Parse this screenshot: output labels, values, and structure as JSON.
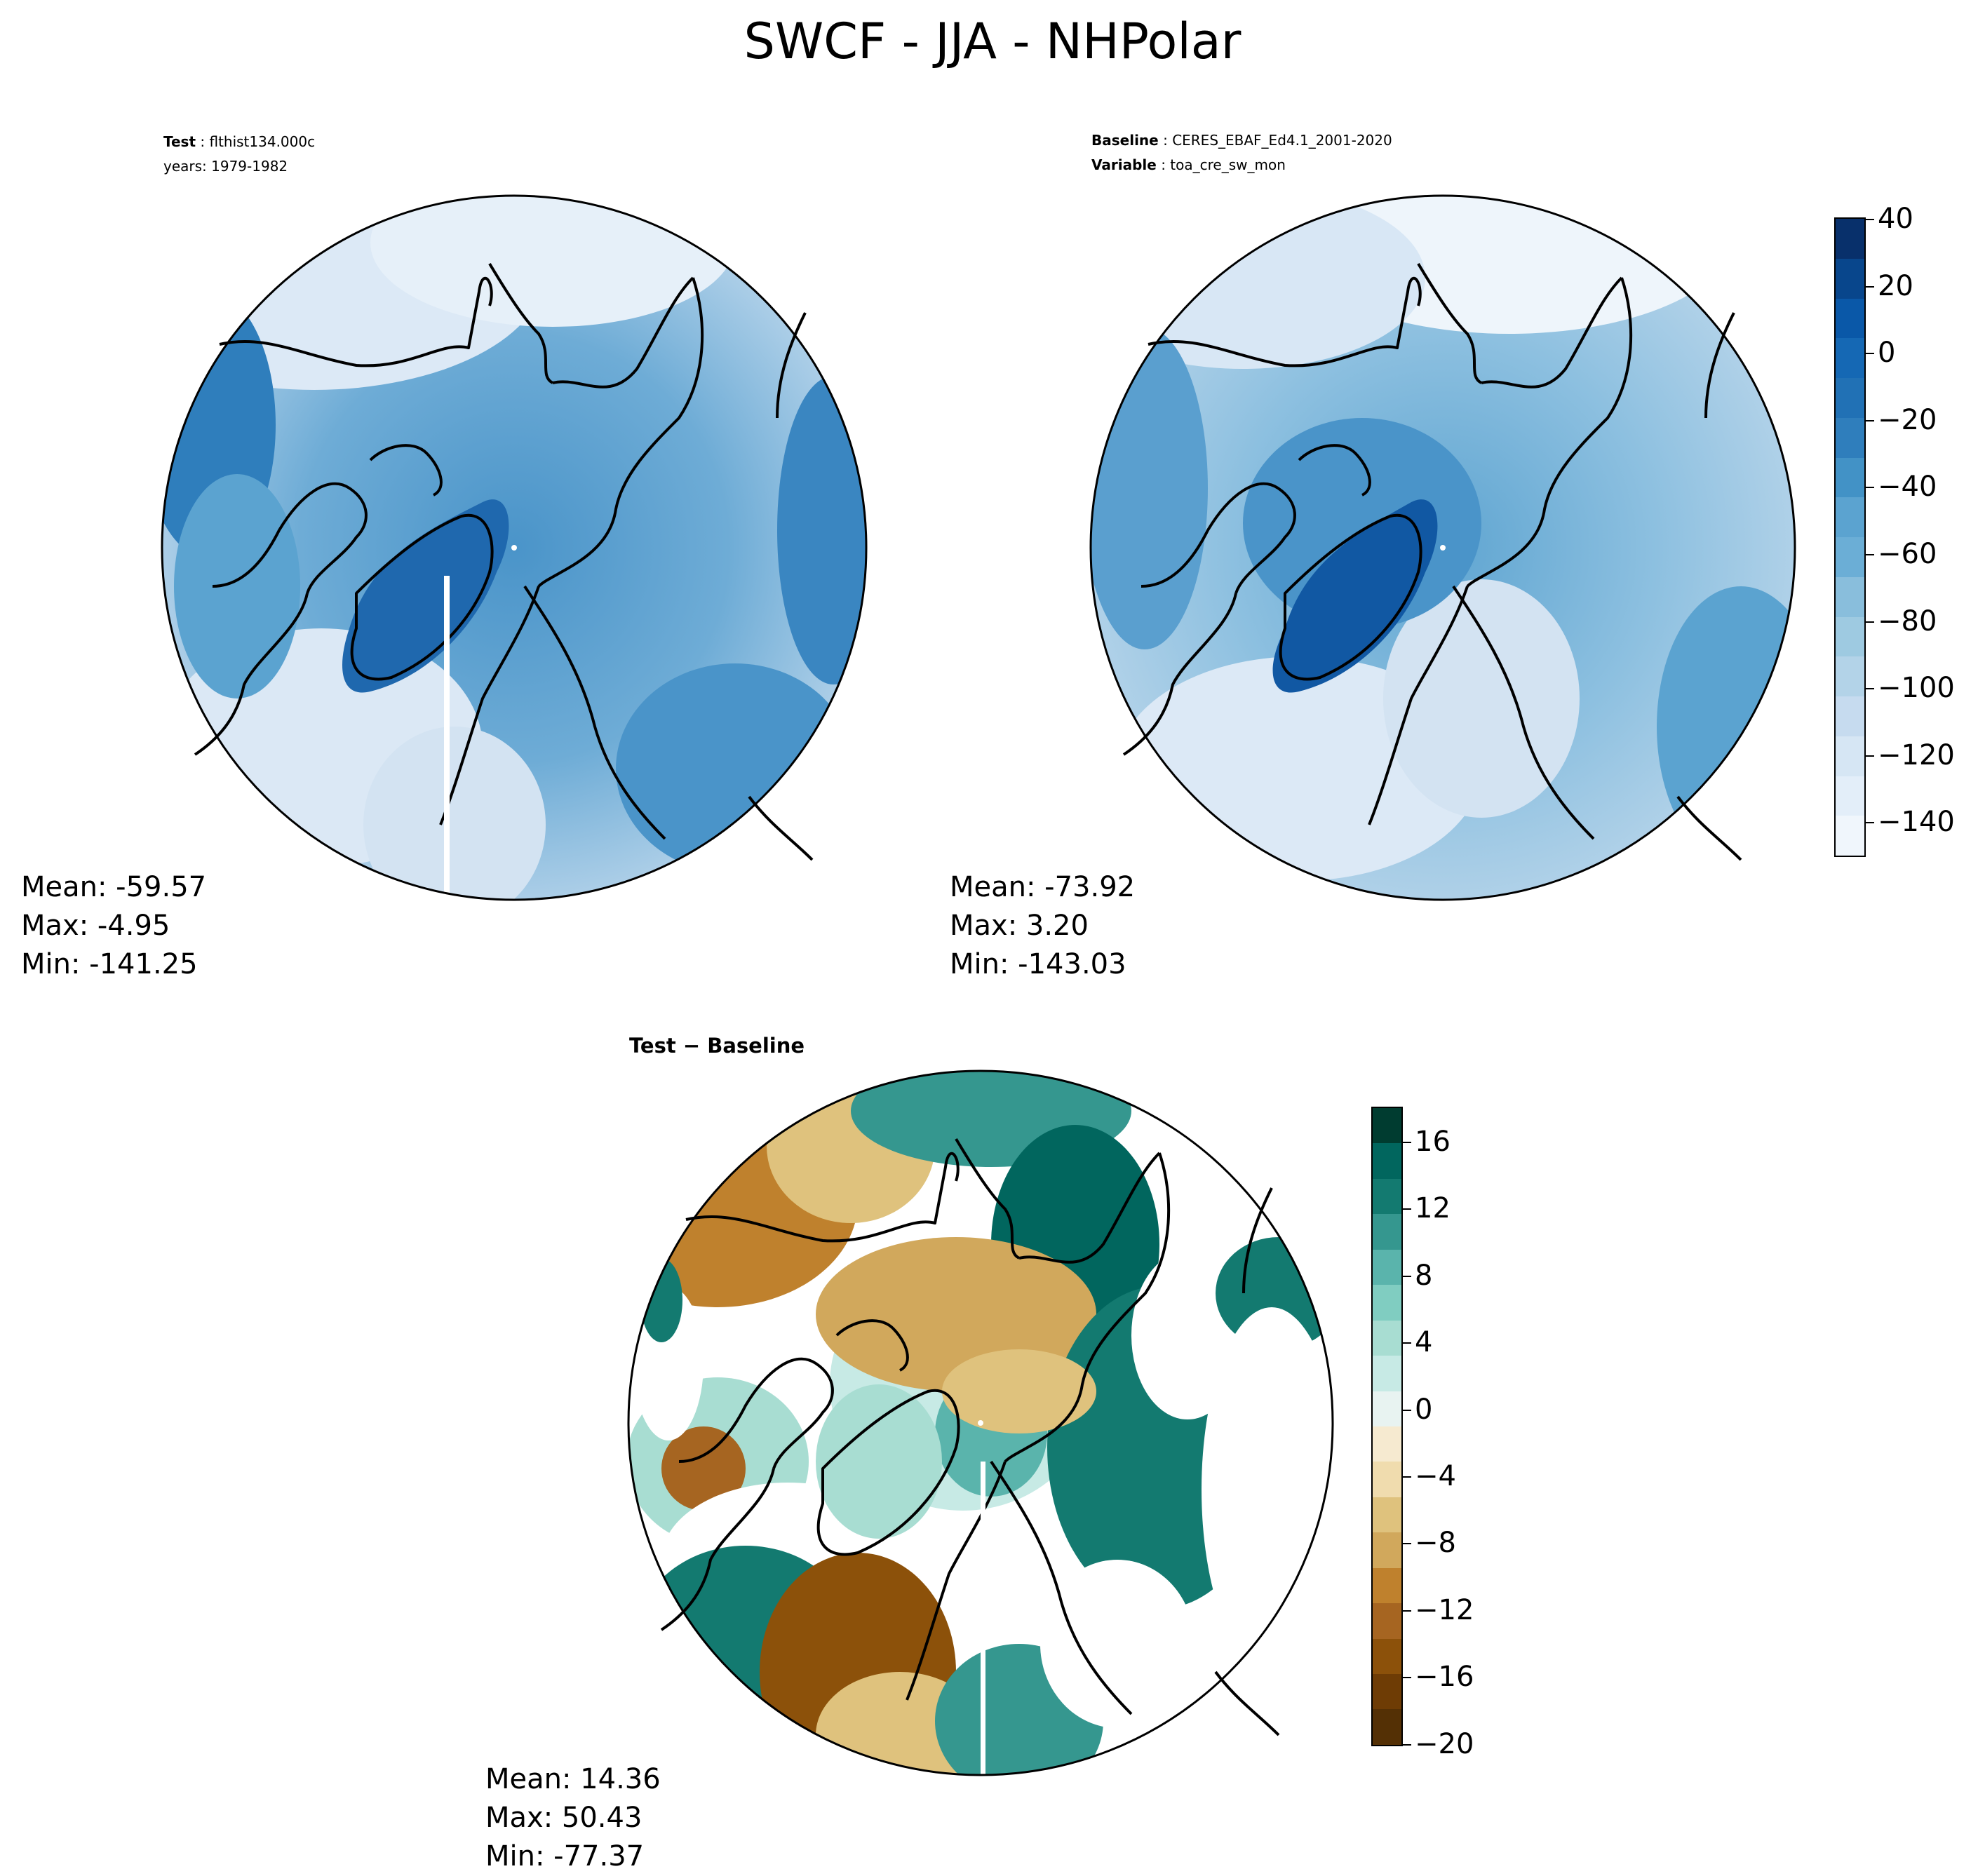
{
  "title": "SWCF - JJA - NHPolar",
  "test_panel": {
    "label_key": "Test",
    "label_value": "flthist134.000c",
    "years": "years: 1979-1982",
    "stats": {
      "mean": "Mean: -59.57",
      "max": "Max: -4.95",
      "min": "Min: -141.25"
    }
  },
  "baseline_panel": {
    "label_key": "Baseline",
    "label_value": "CERES_EBAF_Ed4.1_2001-2020",
    "variable_key": "Variable",
    "variable_value": "toa_cre_sw_mon",
    "stats": {
      "mean": "Mean: -73.92",
      "max": "Max:  3.20",
      "min": "Min: -143.03"
    }
  },
  "diff_panel": {
    "label": "Test − Baseline",
    "stats": {
      "mean": "Mean: 14.36",
      "max": "Max: 50.43",
      "min": "Min: -77.37"
    }
  },
  "colorbar_main": {
    "ticks": [
      "40",
      "20",
      "0",
      "−20",
      "−40",
      "−60",
      "−80",
      "−100",
      "−120",
      "−140"
    ],
    "colors": [
      "#08306b",
      "#08468c",
      "#0a58a8",
      "#1568b4",
      "#2171b5",
      "#2f7ebc",
      "#4292c6",
      "#5ba3d0",
      "#6baed6",
      "#89bedc",
      "#9ecae1",
      "#b3d3e8",
      "#c6dbef",
      "#d6e6f4",
      "#e3eef9",
      "#f0f6fc"
    ]
  },
  "colorbar_diff": {
    "ticks": [
      "16",
      "12",
      "8",
      "4",
      "0",
      "−4",
      "−8",
      "−12",
      "−16",
      "−20"
    ],
    "colors": [
      "#003c30",
      "#01665e",
      "#137a70",
      "#35978f",
      "#5ab4ac",
      "#80cdc1",
      "#a8ddd2",
      "#c7eae5",
      "#e8f3f1",
      "#f6ead0",
      "#f0dcae",
      "#dfc27d",
      "#d1a85c",
      "#bf812d",
      "#a66521",
      "#8c510a",
      "#6e3c05",
      "#543005"
    ]
  }
}
